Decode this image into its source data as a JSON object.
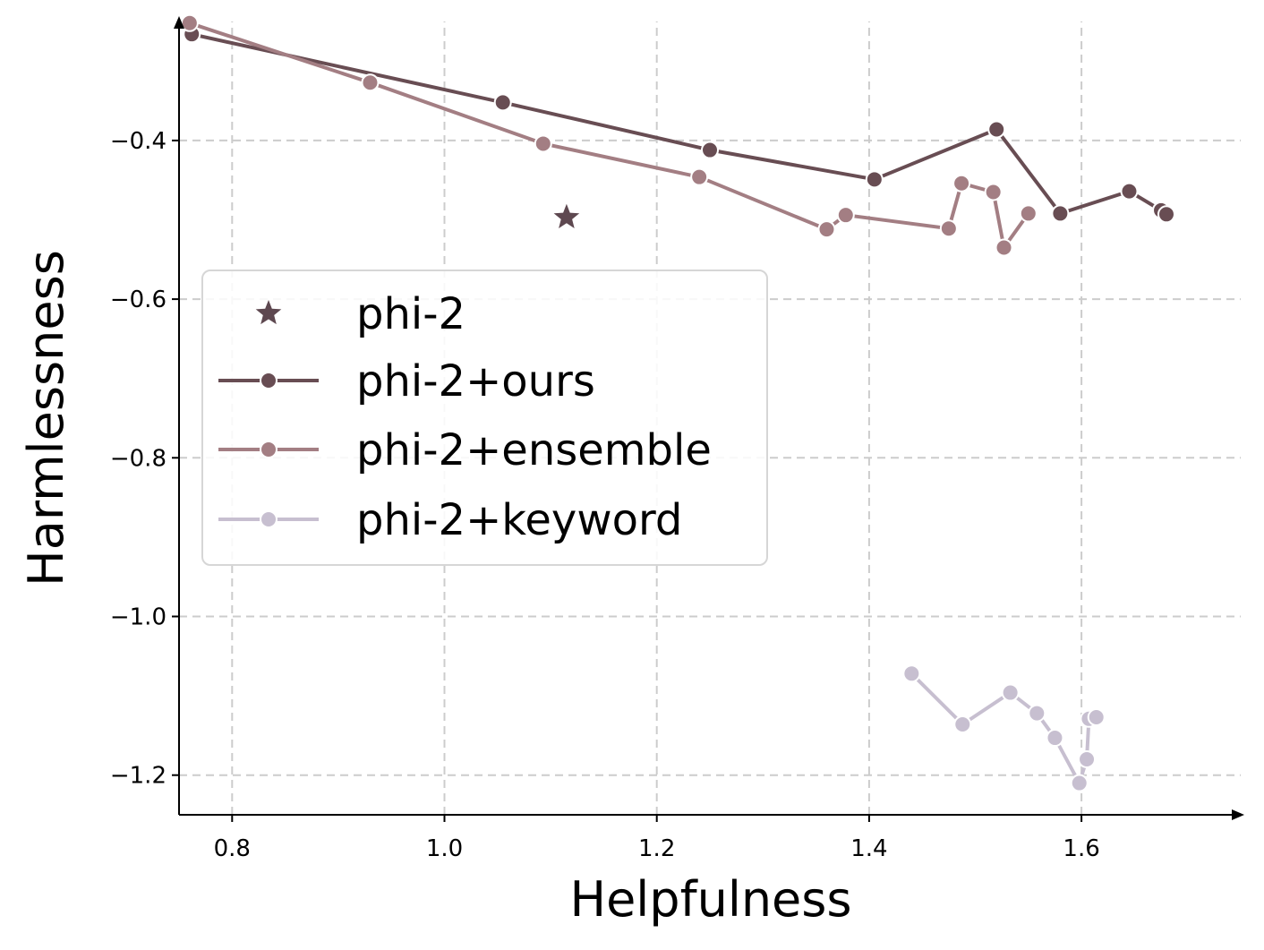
{
  "chart_data": {
    "type": "line",
    "title": "",
    "xlabel": "Helpfulness",
    "ylabel": "Harmlessness",
    "xlim": [
      0.75,
      1.75
    ],
    "ylim": [
      -1.25,
      -0.25
    ],
    "xticks": [
      0.8,
      1.0,
      1.2,
      1.4,
      1.6
    ],
    "xtick_labels": [
      "0.8",
      "1.0",
      "1.2",
      "1.4",
      "1.6"
    ],
    "yticks": [
      -0.4,
      -0.6,
      -0.8,
      -1.0,
      -1.2
    ],
    "ytick_labels": [
      "−0.4",
      "−0.6",
      "−0.8",
      "−1.0",
      "−1.2"
    ],
    "grid": true,
    "legend_position": "center-left",
    "series": [
      {
        "name": "phi-2",
        "marker": "star",
        "line": false,
        "color": "#5e4850",
        "points": [
          [
            1.115,
            -0.497
          ]
        ]
      },
      {
        "name": "phi-2+ours",
        "marker": "circle",
        "line": true,
        "color": "#684d53",
        "points": [
          [
            0.762,
            -0.266
          ],
          [
            1.055,
            -0.352
          ],
          [
            1.25,
            -0.412
          ],
          [
            1.405,
            -0.449
          ],
          [
            1.52,
            -0.386
          ],
          [
            1.58,
            -0.492
          ],
          [
            1.645,
            -0.464
          ],
          [
            1.675,
            -0.488
          ],
          [
            1.68,
            -0.493
          ]
        ]
      },
      {
        "name": "phi-2+ensemble",
        "marker": "circle",
        "line": true,
        "color": "#a37e83",
        "points": [
          [
            0.76,
            -0.252
          ],
          [
            0.93,
            -0.327
          ],
          [
            1.093,
            -0.404
          ],
          [
            1.24,
            -0.446
          ],
          [
            1.36,
            -0.512
          ],
          [
            1.378,
            -0.494
          ],
          [
            1.475,
            -0.511
          ],
          [
            1.487,
            -0.454
          ],
          [
            1.517,
            -0.465
          ],
          [
            1.527,
            -0.535
          ],
          [
            1.55,
            -0.492
          ]
        ]
      },
      {
        "name": "phi-2+keyword",
        "marker": "circle",
        "line": true,
        "color": "#c7bfd0",
        "points": [
          [
            1.44,
            -1.072
          ],
          [
            1.488,
            -1.136
          ],
          [
            1.533,
            -1.096
          ],
          [
            1.558,
            -1.122
          ],
          [
            1.575,
            -1.153
          ],
          [
            1.598,
            -1.21
          ],
          [
            1.605,
            -1.18
          ],
          [
            1.607,
            -1.129
          ],
          [
            1.614,
            -1.127
          ]
        ]
      }
    ]
  }
}
